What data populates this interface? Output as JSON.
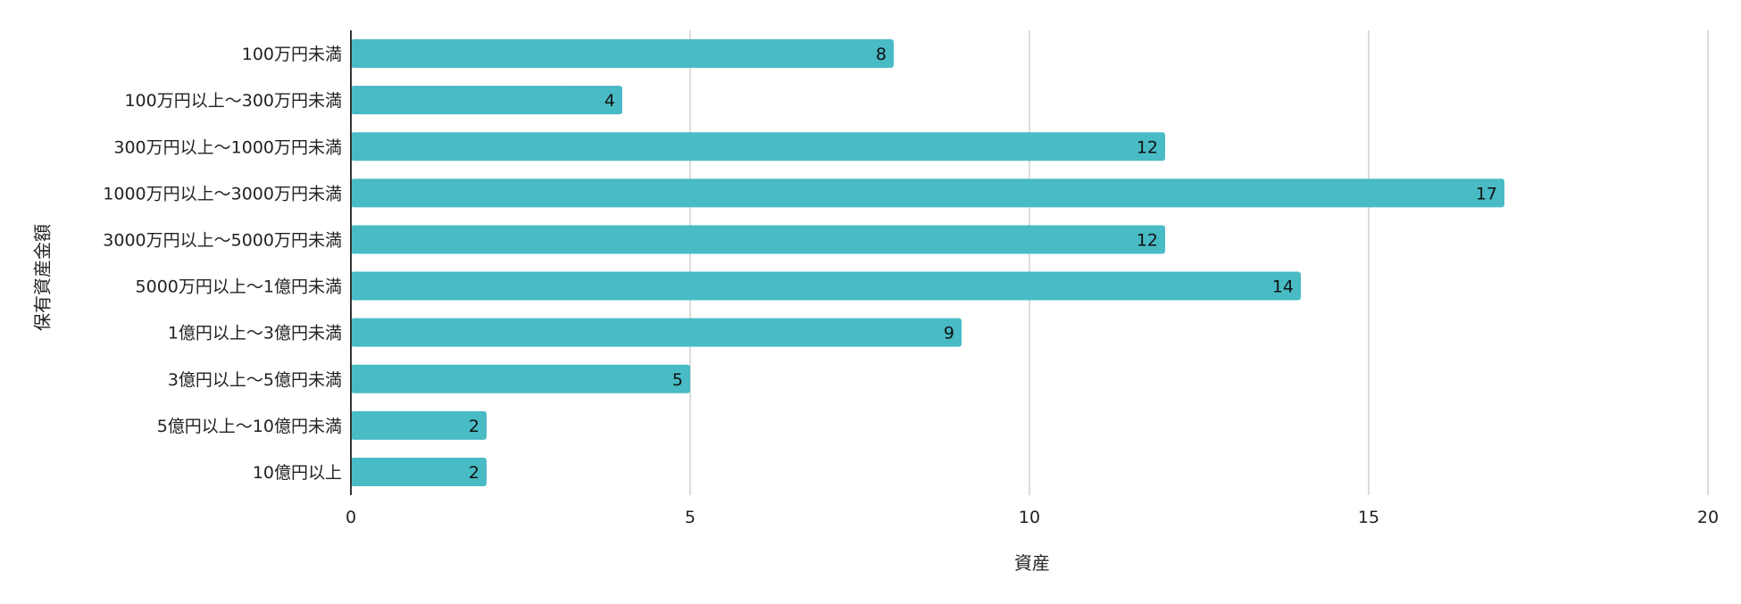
{
  "chart_data": {
    "type": "bar",
    "orientation": "horizontal",
    "categories": [
      "100万円未満",
      "100万円以上〜300万円未満",
      "300万円以上〜1000万円未満",
      "1000万円以上〜3000万円未満",
      "3000万円以上〜5000万円未満",
      "5000万円以上〜1億円未満",
      "1億円以上〜3億円未満",
      "3億円以上〜5億円未満",
      "5億円以上〜10億円未満",
      "10億円以上"
    ],
    "values": [
      8,
      4,
      12,
      17,
      12,
      14,
      9,
      5,
      2,
      2
    ],
    "title": "",
    "xlabel": "資産",
    "ylabel": "保有資産金額",
    "xlim": [
      0,
      20
    ],
    "xticks": [
      0,
      5,
      10,
      15,
      20
    ],
    "grid": true,
    "data_labels": true,
    "bar_color": "#48BBC5",
    "grid_color": "#d0d0d0",
    "axis_color": "#333333"
  }
}
